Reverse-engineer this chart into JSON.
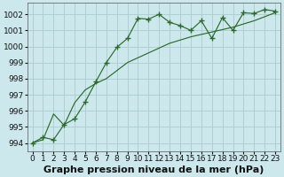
{
  "bg_color": "#cce8ec",
  "grid_color": "#aacccc",
  "line_color": "#2d6a2d",
  "xlim": [
    -0.5,
    23.5
  ],
  "ylim": [
    993.5,
    1002.7
  ],
  "yticks": [
    994,
    995,
    996,
    997,
    998,
    999,
    1000,
    1001,
    1002
  ],
  "xticks": [
    0,
    1,
    2,
    3,
    4,
    5,
    6,
    7,
    8,
    9,
    10,
    11,
    12,
    13,
    14,
    15,
    16,
    17,
    18,
    19,
    20,
    21,
    22,
    23
  ],
  "jagged_x": [
    0,
    1,
    2,
    3,
    4,
    5,
    6,
    7,
    8,
    9,
    10,
    11,
    12,
    13,
    14,
    15,
    16,
    17,
    18,
    19,
    20,
    21,
    22,
    23
  ],
  "jagged_y": [
    994.0,
    994.35,
    994.2,
    995.15,
    995.5,
    996.55,
    997.8,
    999.0,
    999.95,
    1000.5,
    1001.75,
    1001.7,
    1002.0,
    1001.5,
    1001.3,
    1001.0,
    1001.6,
    1000.5,
    1001.8,
    1001.0,
    1002.1,
    1002.05,
    1002.3,
    1002.2
  ],
  "smooth_x": [
    0,
    1,
    2,
    3,
    4,
    5,
    6,
    7,
    8,
    9,
    10,
    11,
    12,
    13,
    14,
    15,
    16,
    17,
    18,
    19,
    20,
    21,
    22,
    23
  ],
  "smooth_y": [
    994.0,
    994.2,
    995.8,
    995.1,
    996.5,
    997.3,
    997.7,
    998.0,
    998.5,
    999.0,
    999.3,
    999.6,
    999.9,
    1000.2,
    1000.4,
    1000.6,
    1000.75,
    1000.9,
    1001.05,
    1001.2,
    1001.4,
    1001.6,
    1001.85,
    1002.1
  ],
  "xlabel": "Graphe pression niveau de la mer (hPa)",
  "xlabel_fontsize": 8,
  "tick_fontsize": 6.5
}
